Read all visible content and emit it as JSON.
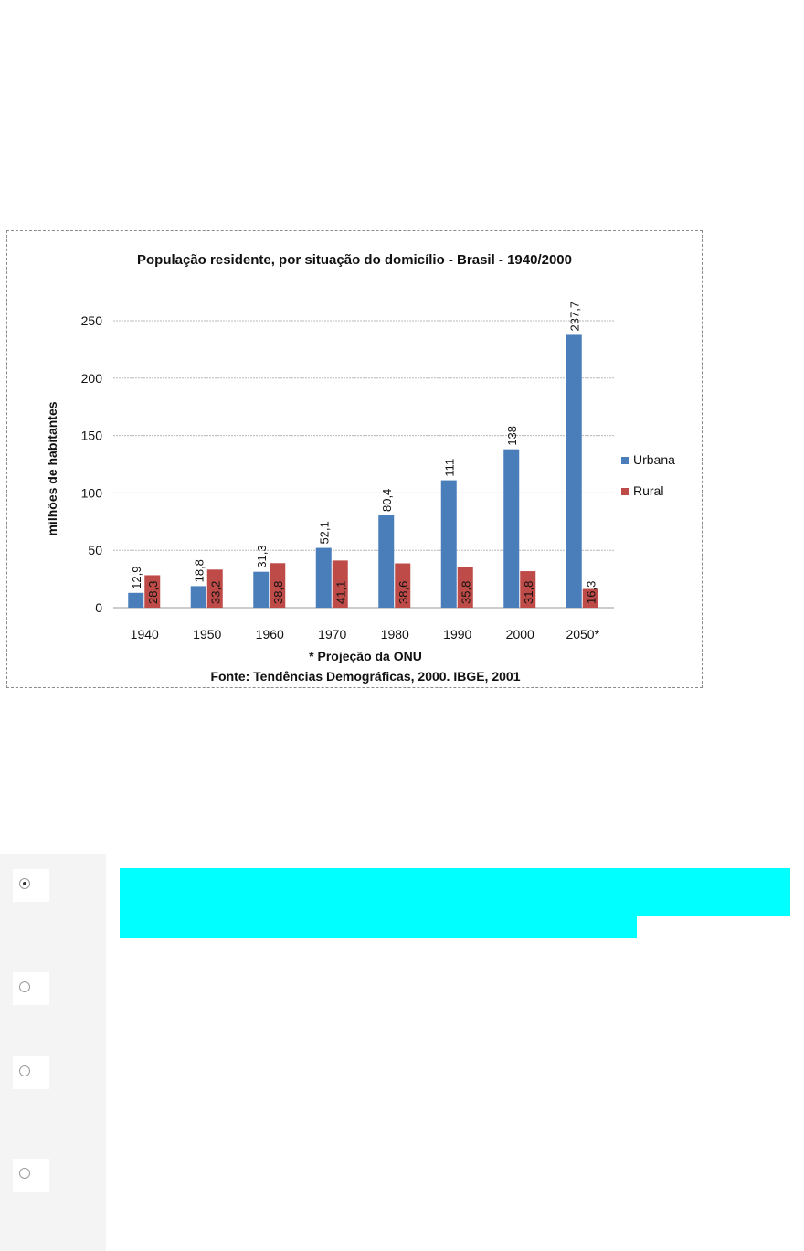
{
  "chart_data": {
    "type": "bar",
    "title": "População residente, por situação do domicílio - Brasil - 1940/2000",
    "ylabel": "milhões de habitantes",
    "xlabel": "",
    "categories": [
      "1940",
      "1950",
      "1960",
      "1970",
      "1980",
      "1990",
      "2000",
      "2050*"
    ],
    "series": [
      {
        "name": "Urbana",
        "color": "#4a7ebb",
        "values": [
          12.9,
          18.8,
          31.3,
          52.1,
          80.4,
          111,
          138,
          237.7
        ],
        "labels": [
          "12,9",
          "18,8",
          "31,3",
          "52,1",
          "80,4",
          "111",
          "138",
          "237,7"
        ]
      },
      {
        "name": "Rural",
        "color": "#be4b48",
        "values": [
          28.3,
          33.2,
          38.8,
          41.1,
          38.6,
          35.8,
          31.8,
          16.3
        ],
        "labels": [
          "28,3",
          "33,2",
          "38,8",
          "41,1",
          "38,6",
          "35,8",
          "31,8",
          "16,3"
        ]
      }
    ],
    "ylim": [
      0,
      250
    ],
    "yticks": [
      0,
      50,
      100,
      150,
      200,
      250
    ],
    "grid": true,
    "legend": "right",
    "notes": [
      "* Projeção da ONU",
      "Fonte: Tendências Demográficas, 2000. IBGE, 2001"
    ]
  },
  "quiz": {
    "options": [
      {
        "selected": true
      },
      {
        "selected": false
      },
      {
        "selected": false
      },
      {
        "selected": false
      }
    ]
  },
  "colors": {
    "highlight": "#00ffff",
    "urbana": "#4a7ebb",
    "rural": "#be4b48"
  }
}
